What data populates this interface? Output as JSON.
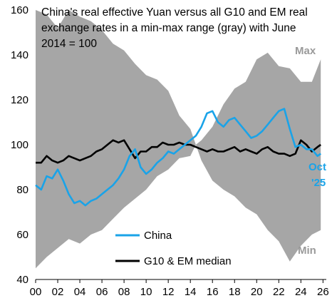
{
  "chart_data": {
    "type": "line",
    "title_lines": [
      "China's real effective Yuan versus all G10 and EM real",
      "exchange rates in a min-max range (gray) with June",
      "2014 = 100"
    ],
    "xlabel": "",
    "ylabel": "",
    "xlim": [
      2000,
      2026.3
    ],
    "ylim": [
      40,
      160
    ],
    "x_ticks": [
      2000,
      2002,
      2004,
      2006,
      2008,
      2010,
      2012,
      2014,
      2016,
      2018,
      2020,
      2022,
      2024,
      2026
    ],
    "x_tick_labels": [
      "00",
      "02",
      "04",
      "06",
      "08",
      "10",
      "12",
      "14",
      "16",
      "18",
      "20",
      "22",
      "24",
      "26"
    ],
    "y_ticks": [
      40,
      60,
      80,
      100,
      120,
      140,
      160
    ],
    "y_tick_labels": [
      "40",
      "60",
      "80",
      "100",
      "120",
      "140",
      "160"
    ],
    "grid": false,
    "legend": [
      {
        "name": "China",
        "color": "#1aa3e8"
      },
      {
        "name": "G10 & EM median",
        "color": "#000000"
      }
    ],
    "band_labels": {
      "max": "Max",
      "min": "Min"
    },
    "end_label": [
      "Oct",
      "'25"
    ],
    "colors": {
      "band": "#a6a6a6",
      "china": "#1aa3e8",
      "median": "#000000"
    },
    "range_band": {
      "x": [
        2000,
        2001,
        2002,
        2003,
        2004,
        2005,
        2006,
        2007,
        2008,
        2009,
        2010,
        2011,
        2012,
        2013,
        2014,
        2014.5,
        2015,
        2016,
        2017,
        2018,
        2019,
        2020,
        2021,
        2022,
        2023,
        2024,
        2025,
        2025.8
      ],
      "max": [
        160,
        158,
        152,
        160,
        157,
        155,
        151,
        145,
        142,
        136,
        131,
        129,
        124,
        113,
        107,
        100,
        102,
        108,
        118,
        125,
        128,
        138,
        141,
        135,
        134,
        128,
        128,
        138
      ],
      "min": [
        45,
        50,
        54,
        58,
        56,
        60,
        62,
        67,
        72,
        76,
        80,
        86,
        89,
        94,
        95,
        100,
        93,
        84,
        80,
        77,
        72,
        69,
        62,
        57,
        48,
        55,
        60,
        62
      ]
    },
    "series": [
      {
        "name": "China",
        "x": [
          2000,
          2000.5,
          2001,
          2001.5,
          2002,
          2002.5,
          2003,
          2003.5,
          2004,
          2004.5,
          2005,
          2005.5,
          2006,
          2006.5,
          2007,
          2007.5,
          2008,
          2008.5,
          2009,
          2009.5,
          2010,
          2010.5,
          2011,
          2011.5,
          2012,
          2012.5,
          2013,
          2013.5,
          2014,
          2014.5,
          2015,
          2015.5,
          2016,
          2016.5,
          2017,
          2017.5,
          2018,
          2018.5,
          2019,
          2019.5,
          2020,
          2020.5,
          2021,
          2021.5,
          2022,
          2022.5,
          2023,
          2023.5,
          2024,
          2024.5,
          2025,
          2025.5,
          2025.8
        ],
        "values": [
          82,
          80,
          86,
          85,
          89,
          84,
          78,
          74,
          75,
          73,
          75,
          76,
          78,
          80,
          82,
          85,
          89,
          95,
          98,
          90,
          87,
          89,
          92,
          94,
          97,
          96,
          98,
          100,
          102,
          104,
          108,
          114,
          115,
          110,
          108,
          111,
          112,
          109,
          106,
          103,
          104,
          106,
          109,
          112,
          115,
          116,
          107,
          99,
          100,
          98,
          98,
          95,
          96
        ]
      },
      {
        "name": "G10 & EM median",
        "x": [
          2000,
          2000.5,
          2001,
          2001.5,
          2002,
          2002.5,
          2003,
          2003.5,
          2004,
          2004.5,
          2005,
          2005.5,
          2006,
          2006.5,
          2007,
          2007.5,
          2008,
          2008.5,
          2009,
          2009.5,
          2010,
          2010.5,
          2011,
          2011.5,
          2012,
          2012.5,
          2013,
          2013.5,
          2014,
          2014.5,
          2015,
          2015.5,
          2016,
          2016.5,
          2017,
          2017.5,
          2018,
          2018.5,
          2019,
          2019.5,
          2020,
          2020.5,
          2021,
          2021.5,
          2022,
          2022.5,
          2023,
          2023.5,
          2024,
          2024.5,
          2025,
          2025.5,
          2025.8
        ],
        "values": [
          92,
          92,
          95,
          93,
          92,
          93,
          95,
          94,
          93,
          94,
          95,
          97,
          98,
          100,
          102,
          101,
          102,
          98,
          94,
          97,
          97,
          99,
          99,
          101,
          100,
          100,
          101,
          100,
          100,
          99,
          98,
          97,
          98,
          97,
          97,
          98,
          99,
          97,
          98,
          97,
          96,
          98,
          99,
          97,
          96,
          96,
          95,
          96,
          102,
          100,
          97,
          99,
          100
        ]
      }
    ]
  }
}
